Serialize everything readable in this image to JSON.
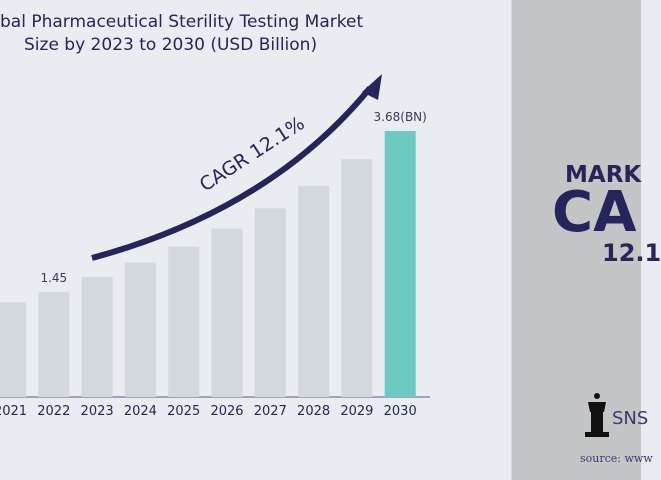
{
  "chart_data": {
    "type": "bar",
    "title_line1": "bal Pharmaceutical Sterility Testing Market",
    "title_line2": "Size by 2023 to 2030 (USD Billion)",
    "categories": [
      "2021",
      "2022",
      "2023",
      "2024",
      "2025",
      "2026",
      "2027",
      "2028",
      "2029",
      "2030"
    ],
    "values": [
      1.31,
      1.45,
      1.66,
      1.86,
      2.08,
      2.33,
      2.61,
      2.92,
      3.29,
      3.68
    ],
    "data_labels": {
      "1": "1.45",
      "9": "3.68(BN)"
    },
    "annotation": "CAGR 12.1%",
    "ylim": [
      0,
      3.68
    ],
    "grid": false,
    "colors": {
      "bar": "#d1d8de",
      "highlight": "#6ccac3",
      "text": "#26255a",
      "arrow": "#26255a"
    }
  },
  "side_panel": {
    "line1": "MARK",
    "line2": "CA",
    "line3": "12.1",
    "logo_text": "SNS",
    "source": "source: www",
    "background": "#c4c5c7"
  }
}
